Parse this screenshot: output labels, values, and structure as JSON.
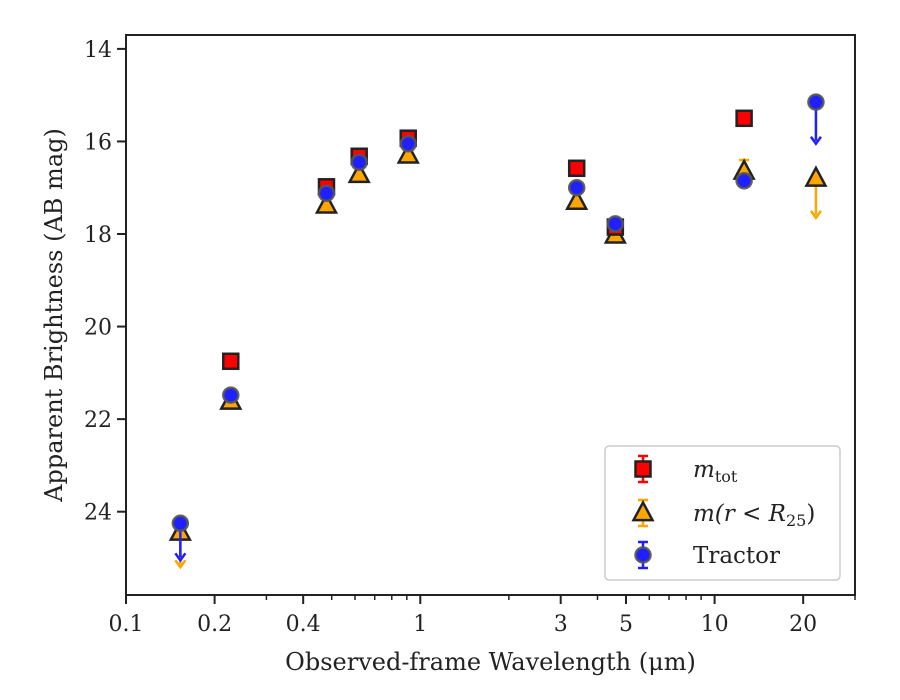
{
  "chart_data": {
    "type": "scatter",
    "xlabel": "Observed-frame Wavelength (μm)",
    "ylabel": "Apparent Brightness (AB mag)",
    "xscale": "log",
    "xlim": [
      0.1,
      30
    ],
    "ylim": [
      25.8,
      13.7
    ],
    "y_inverted": true,
    "grid": false,
    "legend_placement": "lower-right",
    "x_ticks": [
      {
        "value": 0.1,
        "label": "0.1"
      },
      {
        "value": 0.2,
        "label": "0.2"
      },
      {
        "value": 0.4,
        "label": "0.4"
      },
      {
        "value": 1,
        "label": "1"
      },
      {
        "value": 3,
        "label": "3"
      },
      {
        "value": 5,
        "label": "5"
      },
      {
        "value": 10,
        "label": "10"
      },
      {
        "value": 20,
        "label": "20"
      }
    ],
    "x_minor_ticks": [
      0.3,
      0.5,
      0.6,
      0.7,
      0.8,
      0.9,
      2,
      4,
      6,
      7,
      8,
      9,
      30
    ],
    "y_ticks": [
      {
        "value": 14,
        "label": "14"
      },
      {
        "value": 16,
        "label": "16"
      },
      {
        "value": 18,
        "label": "18"
      },
      {
        "value": 20,
        "label": "20"
      },
      {
        "value": 22,
        "label": "22"
      },
      {
        "value": 24,
        "label": "24"
      }
    ],
    "series": [
      {
        "name": "m_tot",
        "legend_label": "m",
        "legend_sub": "tot",
        "marker": "square",
        "color": "#ff0000",
        "edge": "#222222",
        "points": [
          {
            "x": 0.227,
            "y": 20.75
          },
          {
            "x": 0.48,
            "y": 16.98
          },
          {
            "x": 0.62,
            "y": 16.32
          },
          {
            "x": 0.91,
            "y": 15.93
          },
          {
            "x": 3.4,
            "y": 16.58
          },
          {
            "x": 4.6,
            "y": 17.85
          },
          {
            "x": 12.6,
            "y": 15.5
          }
        ]
      },
      {
        "name": "m(r < R25)",
        "legend_label": "m(r < R",
        "legend_sub": "25",
        "legend_close": ")",
        "marker": "triangle",
        "color": "#ffa500",
        "edge": "#222222",
        "points": [
          {
            "x": 0.153,
            "y": 24.45,
            "upper_limit": true,
            "arrow_to": 25.2
          },
          {
            "x": 0.227,
            "y": 21.62
          },
          {
            "x": 0.48,
            "y": 17.38
          },
          {
            "x": 0.62,
            "y": 16.72
          },
          {
            "x": 0.91,
            "y": 16.3
          },
          {
            "x": 3.4,
            "y": 17.3
          },
          {
            "x": 4.6,
            "y": 18.03
          },
          {
            "x": 12.6,
            "y": 16.65,
            "yerr": 0.25
          },
          {
            "x": 22.1,
            "y": 16.8,
            "upper_limit": true,
            "arrow_to": 17.65
          }
        ]
      },
      {
        "name": "Tractor",
        "legend_label": "Tractor",
        "marker": "circle",
        "color": "#1f1fff",
        "edge": "#555555",
        "points": [
          {
            "x": 0.153,
            "y": 24.25,
            "upper_limit": true,
            "arrow_to": 25.05
          },
          {
            "x": 0.227,
            "y": 21.48
          },
          {
            "x": 0.48,
            "y": 17.12
          },
          {
            "x": 0.62,
            "y": 16.45
          },
          {
            "x": 0.91,
            "y": 16.05
          },
          {
            "x": 3.4,
            "y": 17.0
          },
          {
            "x": 4.6,
            "y": 17.78
          },
          {
            "x": 12.6,
            "y": 16.85
          },
          {
            "x": 22.1,
            "y": 15.15,
            "upper_limit": true,
            "arrow_to": 16.05
          }
        ]
      }
    ]
  }
}
